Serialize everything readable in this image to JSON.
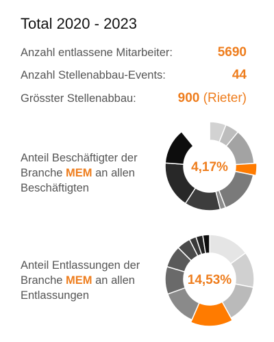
{
  "title": "Total 2020 - 2023",
  "stats": [
    {
      "label": "Anzahl entlassene Mitarbeiter:",
      "value": "5690",
      "note": ""
    },
    {
      "label": "Anzahl Stellenabbau-Events:",
      "value": "44",
      "note": ""
    },
    {
      "label": "Grösster Stellenabbau:",
      "value": "900",
      "note": "(Rieter)"
    }
  ],
  "accent_color": "#ee7d1d",
  "chart_data": [
    {
      "type": "pie",
      "donut": true,
      "text_before": "Anteil Beschäftigter der Branche ",
      "highlight": "MEM",
      "text_after": " an allen Beschäftigten",
      "center_label": "4,17%",
      "highlight_value": 4.17,
      "segments": [
        {
          "value": 6,
          "color": "#d2d2d2"
        },
        {
          "value": 5,
          "color": "#bdbdbd"
        },
        {
          "value": 13,
          "color": "#a3a3a3"
        },
        {
          "value": 4.17,
          "color": "#ff7b00"
        },
        {
          "value": 16,
          "color": "#7a7a7a"
        },
        {
          "value": 2,
          "color": "#8c8c8c"
        },
        {
          "value": 13,
          "color": "#3d3d3d"
        },
        {
          "value": 17,
          "color": "#282828"
        },
        {
          "value": 13,
          "color": "#0d0d0d"
        },
        {
          "value": 10.83,
          "color": "#ffffff"
        }
      ]
    },
    {
      "type": "pie",
      "donut": true,
      "text_before": "Anteil Entlassungen der Branche ",
      "highlight": "MEM",
      "text_after": " an allen Entlassungen",
      "center_label": "14,53%",
      "highlight_value": 14.53,
      "segments": [
        {
          "value": 15,
          "color": "#e5e5e5"
        },
        {
          "value": 13,
          "color": "#d0d0d0"
        },
        {
          "value": 14,
          "color": "#bababa"
        },
        {
          "value": 14.53,
          "color": "#ff7b00"
        },
        {
          "value": 13,
          "color": "#8a8a8a"
        },
        {
          "value": 10,
          "color": "#6a6a6a"
        },
        {
          "value": 8,
          "color": "#5a5a5a"
        },
        {
          "value": 5,
          "color": "#4a4a4a"
        },
        {
          "value": 2.5,
          "color": "#3a3a3a"
        },
        {
          "value": 2.5,
          "color": "#222222"
        },
        {
          "value": 2.47,
          "color": "#0d0d0d"
        }
      ]
    }
  ]
}
